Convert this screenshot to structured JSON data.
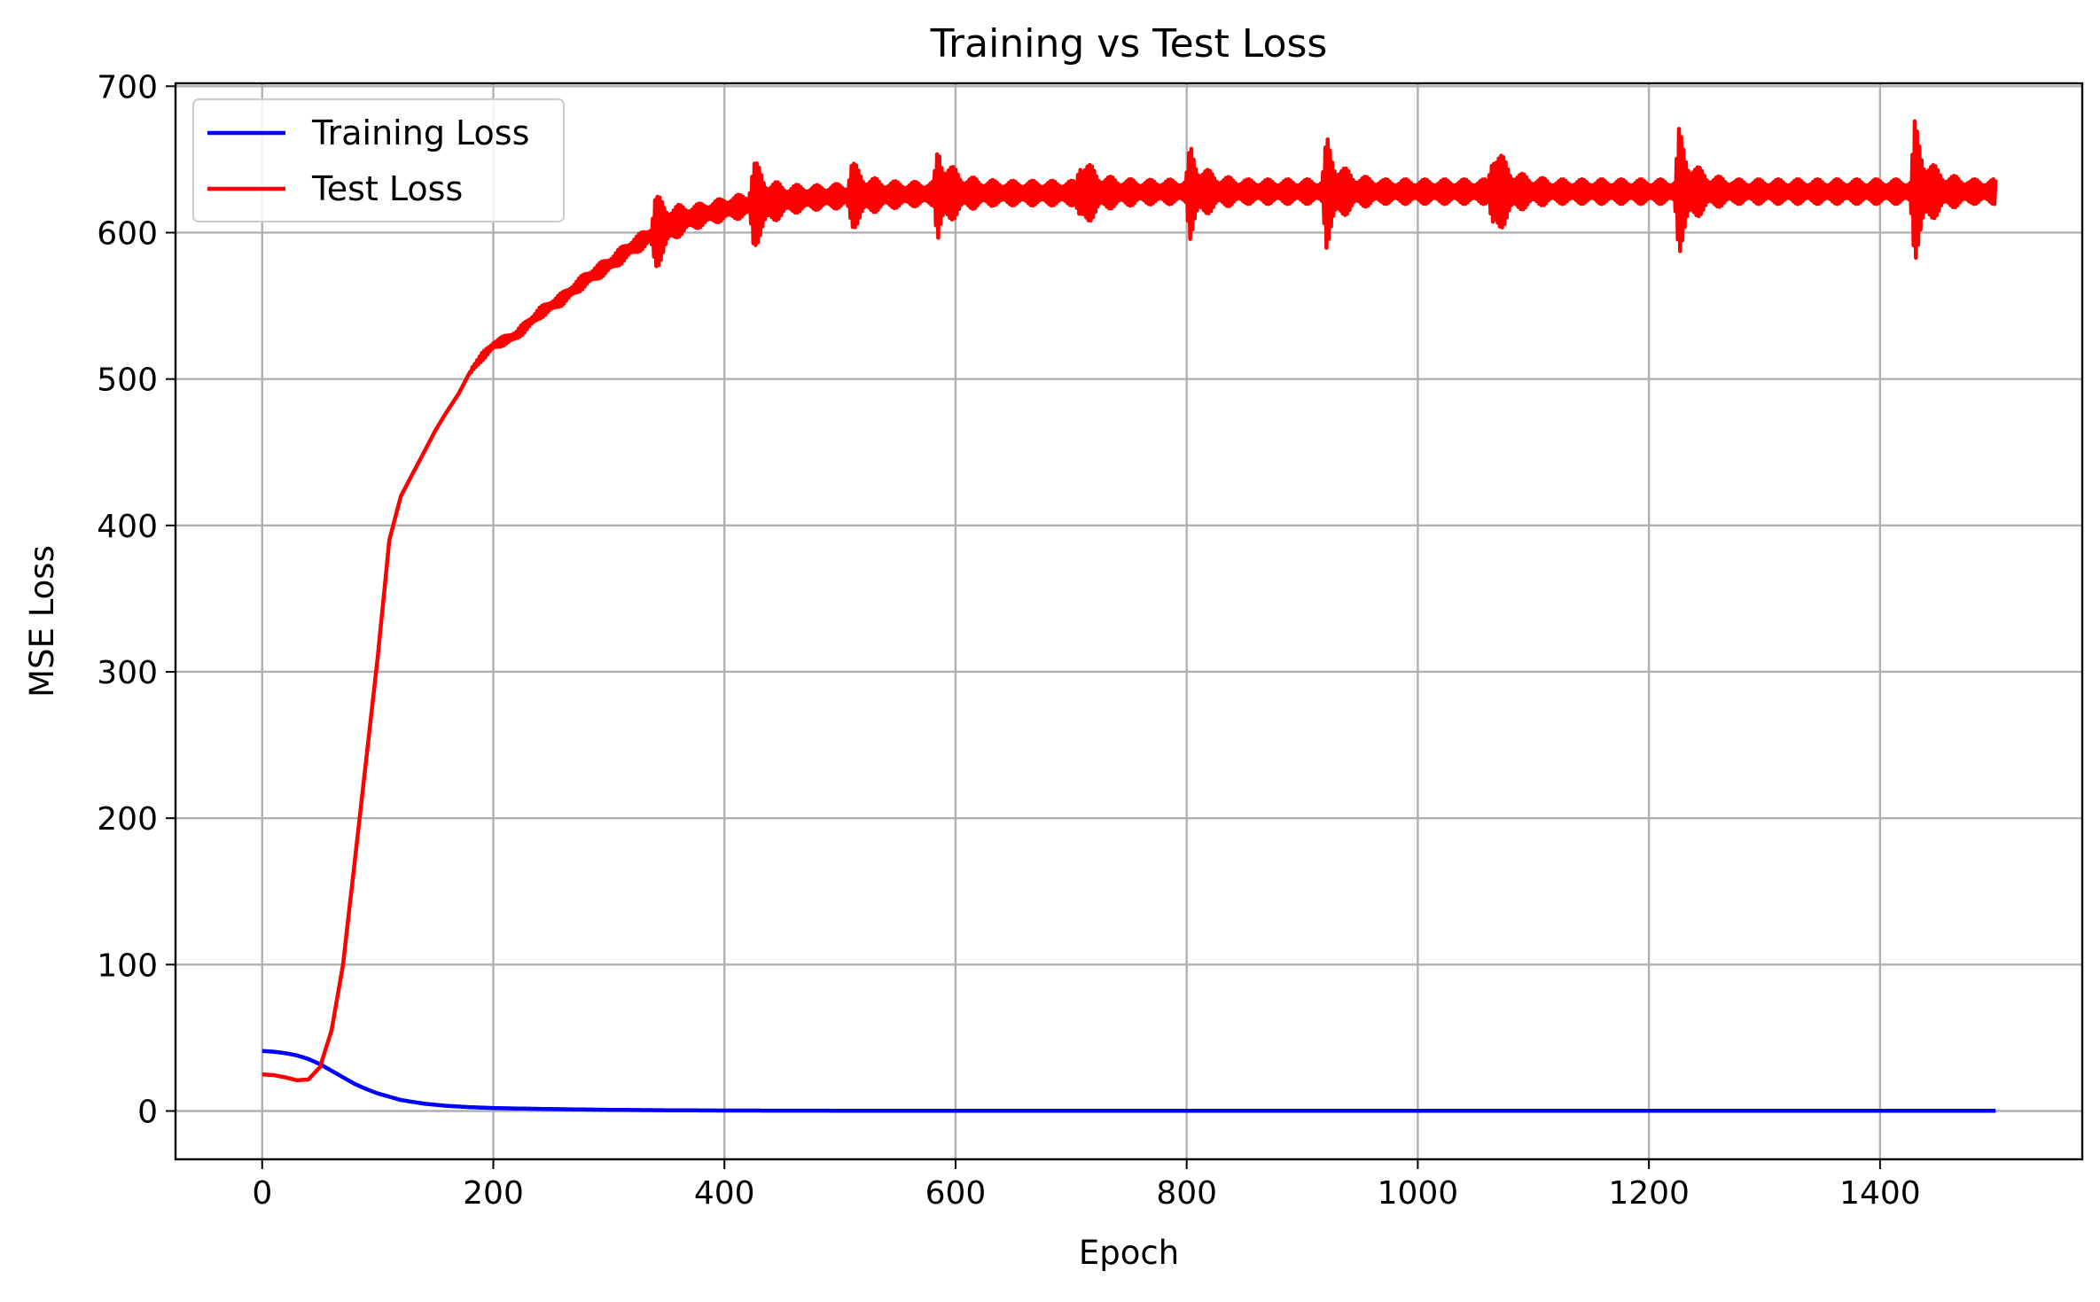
{
  "chart_data": {
    "type": "line",
    "title": "Training vs Test Loss",
    "xlabel": "Epoch",
    "ylabel": "MSE Loss",
    "xlim": [
      -75,
      1575
    ],
    "ylim": [
      -33,
      702
    ],
    "xticks": [
      0,
      200,
      400,
      600,
      800,
      1000,
      1200,
      1400
    ],
    "yticks": [
      0,
      100,
      200,
      300,
      400,
      500,
      600,
      700
    ],
    "grid": true,
    "legend_position": "top-left",
    "series": [
      {
        "name": "Training Loss",
        "color": "#0000ff",
        "x": [
          0,
          10,
          20,
          30,
          40,
          50,
          60,
          70,
          80,
          90,
          100,
          120,
          140,
          160,
          180,
          200,
          250,
          300,
          350,
          400,
          500,
          600,
          800,
          1000,
          1200,
          1400,
          1500
        ],
        "y": [
          41,
          40.5,
          39.5,
          38,
          35.5,
          32,
          27.5,
          23,
          18.5,
          15,
          12,
          7.5,
          5,
          3.5,
          2.6,
          2,
          1.3,
          0.8,
          0.5,
          0.3,
          0.2,
          0.15,
          0.1,
          0.1,
          0.1,
          0.1,
          0.1
        ]
      },
      {
        "name": "Test Loss",
        "color": "#ff0000",
        "x": [
          0,
          10,
          20,
          30,
          40,
          50,
          60,
          70,
          80,
          90,
          100,
          110,
          120,
          130,
          140,
          150,
          160,
          170,
          180,
          190,
          200,
          220,
          240,
          260,
          280,
          300,
          320,
          340,
          360,
          380,
          400,
          430,
          460,
          500,
          550,
          600,
          700,
          800,
          900,
          1000,
          1100,
          1200,
          1300,
          1400,
          1500
        ],
        "y": [
          25,
          24.5,
          23,
          21,
          21.5,
          30,
          55,
          100,
          170,
          240,
          310,
          390,
          420,
          435,
          450,
          465,
          478,
          490,
          505,
          515,
          523,
          530,
          545,
          555,
          568,
          578,
          590,
          600,
          608,
          612,
          616,
          620,
          623,
          625,
          626,
          627,
          627,
          628,
          628,
          628,
          628,
          628,
          628,
          628,
          628
        ],
        "oscillation_bursts": [
          {
            "x": 340,
            "amplitude": 22
          },
          {
            "x": 425,
            "amplitude": 25
          },
          {
            "x": 510,
            "amplitude": 17
          },
          {
            "x": 585,
            "amplitude": 28
          },
          {
            "x": 708,
            "amplitude": 22
          },
          {
            "x": 803,
            "amplitude": 24
          },
          {
            "x": 921,
            "amplitude": 30
          },
          {
            "x": 1065,
            "amplitude": 32
          },
          {
            "x": 1226,
            "amplitude": 35
          },
          {
            "x": 1430,
            "amplitude": 40
          }
        ]
      }
    ]
  }
}
